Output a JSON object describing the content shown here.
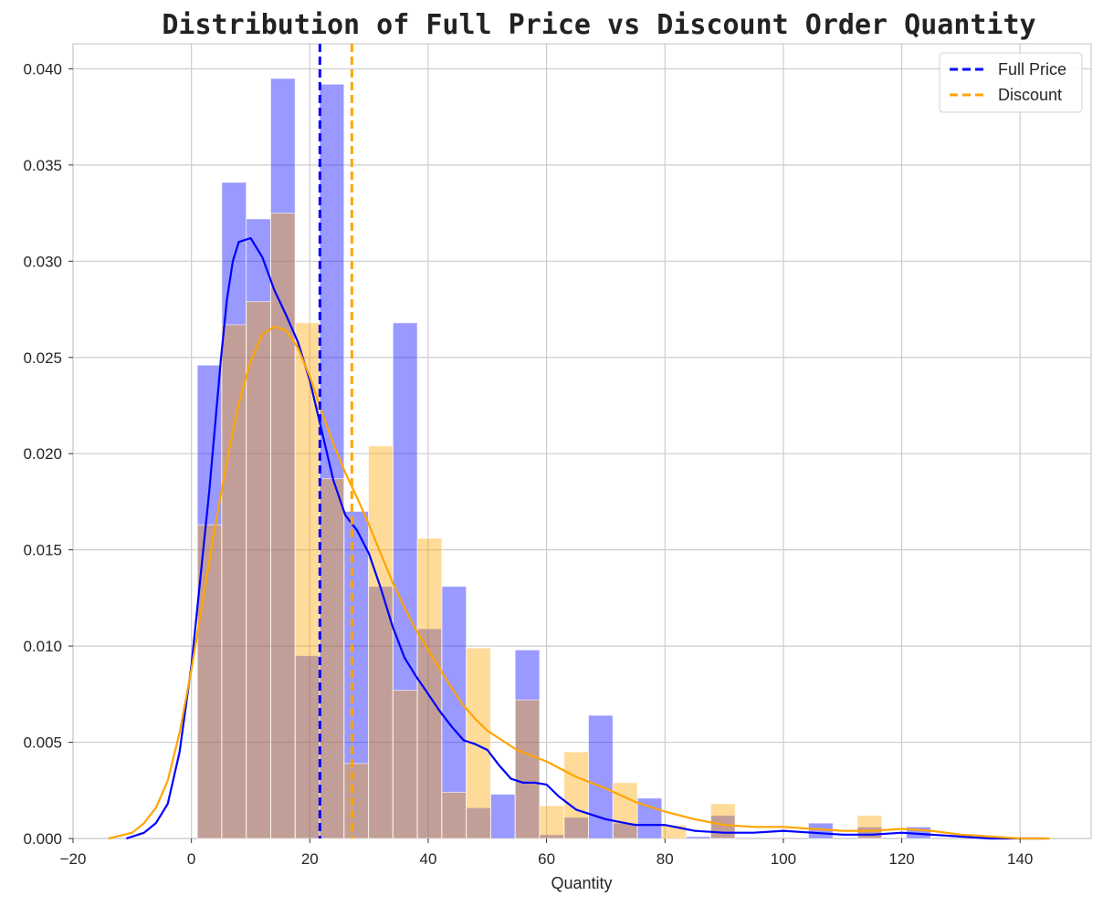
{
  "chart_data": {
    "type": "bar",
    "title": "Distribution of Full Price vs Discount Order Quantity",
    "xlabel": "Quantity",
    "ylabel": "",
    "xlim": [
      -20,
      152
    ],
    "ylim": [
      0,
      0.0413
    ],
    "x_ticks": [
      -20,
      0,
      20,
      40,
      60,
      80,
      100,
      120,
      140
    ],
    "y_ticks": [
      0.0,
      0.005,
      0.01,
      0.015,
      0.02,
      0.025,
      0.03,
      0.035,
      0.04
    ],
    "x_tick_labels": [
      "−20",
      "0",
      "20",
      "40",
      "60",
      "80",
      "100",
      "120",
      "140"
    ],
    "y_tick_labels": [
      "0.000",
      "0.005",
      "0.010",
      "0.015",
      "0.020",
      "0.025",
      "0.030",
      "0.035",
      "0.040"
    ],
    "grid": true,
    "legend_position": "top-right",
    "series": [
      {
        "name": "Full Price",
        "color": "#0000ff",
        "mean": 21.7,
        "histogram": {
          "bin_edges": [
            1.0,
            5.13,
            9.26,
            13.39,
            17.52,
            21.65,
            25.78,
            29.91,
            34.04,
            38.17,
            42.3,
            46.43,
            50.56,
            54.69,
            58.82,
            62.95,
            67.08,
            71.21,
            75.34,
            79.47,
            83.6,
            87.73,
            91.86,
            95.99,
            100.12,
            104.25,
            108.38,
            112.51,
            116.64,
            120.77,
            124.9
          ],
          "values": [
            0.0246,
            0.0341,
            0.0322,
            0.0395,
            0.0095,
            0.0392,
            0.017,
            0.0131,
            0.0268,
            0.0109,
            0.0131,
            0.0016,
            0.0023,
            0.0098,
            0.0002,
            0.0011,
            0.0064,
            0.0008,
            0.0021,
            0.0,
            0.0001,
            0.0012,
            0.0,
            0.0,
            0.0,
            0.0008,
            0.0,
            0.0006,
            0.0,
            0.0006
          ]
        },
        "kde": {
          "x": [
            -11,
            -8,
            -6,
            -4,
            -2,
            0,
            2,
            3,
            4,
            5,
            6,
            7,
            8,
            10,
            12,
            14,
            16,
            18,
            20,
            22,
            24,
            26,
            28,
            30,
            32,
            34,
            36,
            38,
            40,
            42,
            44,
            46,
            48,
            50,
            52,
            54,
            56,
            58,
            60,
            62,
            65,
            70,
            75,
            80,
            85,
            90,
            95,
            100,
            105,
            110,
            115,
            120,
            125,
            130,
            135,
            140,
            144
          ],
          "y": [
            0.0,
            0.0003,
            0.0008,
            0.0018,
            0.0045,
            0.009,
            0.015,
            0.018,
            0.0215,
            0.025,
            0.028,
            0.03,
            0.031,
            0.0312,
            0.0302,
            0.0285,
            0.0272,
            0.0258,
            0.0238,
            0.0212,
            0.0186,
            0.0168,
            0.016,
            0.0148,
            0.013,
            0.011,
            0.0094,
            0.0084,
            0.0075,
            0.0066,
            0.0058,
            0.0051,
            0.0049,
            0.0046,
            0.0038,
            0.0031,
            0.0029,
            0.0029,
            0.0028,
            0.0022,
            0.0015,
            0.001,
            0.0007,
            0.0007,
            0.0004,
            0.0003,
            0.0003,
            0.0004,
            0.0003,
            0.0002,
            0.0002,
            0.0003,
            0.0002,
            0.0001,
            0.0,
            0.0,
            0.0
          ]
        }
      },
      {
        "name": "Discount",
        "color": "#ffa500",
        "mean": 27.1,
        "histogram": {
          "bin_edges": [
            1.0,
            5.13,
            9.26,
            13.39,
            17.52,
            21.65,
            25.78,
            29.91,
            34.04,
            38.17,
            42.3,
            46.43,
            50.56,
            54.69,
            58.82,
            62.95,
            67.08,
            71.21,
            75.34,
            79.47,
            83.6,
            87.73,
            91.86,
            95.99,
            100.12,
            104.25,
            108.38,
            112.51,
            116.64,
            120.77,
            124.9
          ],
          "values": [
            0.0163,
            0.0267,
            0.0279,
            0.0325,
            0.0268,
            0.0187,
            0.0039,
            0.0204,
            0.0077,
            0.0156,
            0.0024,
            0.0099,
            0.0,
            0.0072,
            0.0017,
            0.0045,
            0.0,
            0.0029,
            0.0,
            0.0007,
            0.0,
            0.0018,
            0.0,
            0.0,
            0.0,
            0.0,
            0.0,
            0.0012,
            0.0,
            0.0
          ]
        },
        "kde": {
          "x": [
            -14,
            -10,
            -8,
            -6,
            -4,
            -2,
            0,
            2,
            4,
            6,
            8,
            10,
            12,
            14,
            16,
            18,
            20,
            22,
            24,
            26,
            28,
            30,
            32,
            34,
            36,
            38,
            40,
            42,
            44,
            46,
            48,
            50,
            55,
            60,
            65,
            70,
            75,
            80,
            85,
            90,
            95,
            100,
            105,
            110,
            115,
            120,
            125,
            130,
            135,
            140,
            145
          ],
          "y": [
            0.0,
            0.0003,
            0.0008,
            0.0016,
            0.003,
            0.0055,
            0.0088,
            0.0125,
            0.0162,
            0.0196,
            0.0226,
            0.0248,
            0.0262,
            0.0266,
            0.0264,
            0.0255,
            0.024,
            0.0222,
            0.0205,
            0.019,
            0.0177,
            0.0163,
            0.0148,
            0.0133,
            0.012,
            0.0108,
            0.0098,
            0.0088,
            0.0078,
            0.0069,
            0.0062,
            0.0056,
            0.0046,
            0.004,
            0.0032,
            0.0026,
            0.0019,
            0.0014,
            0.001,
            0.0007,
            0.0006,
            0.0006,
            0.0005,
            0.0004,
            0.0004,
            0.0005,
            0.0004,
            0.0002,
            0.0001,
            0.0,
            0.0
          ]
        }
      }
    ]
  }
}
